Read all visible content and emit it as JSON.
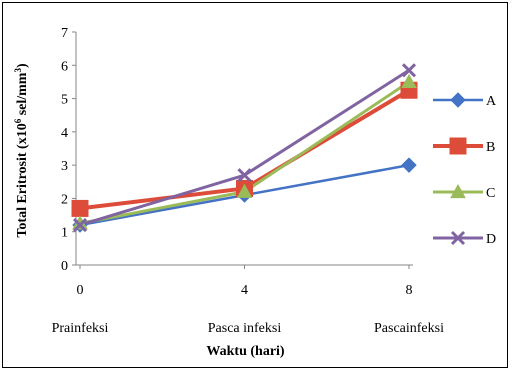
{
  "chart_data": {
    "type": "line",
    "x": [
      0,
      4,
      8
    ],
    "x_tick_labels": [
      "0",
      "4",
      "8"
    ],
    "category_labels": [
      "Prainfeksi",
      "Pasca infeksi",
      "Pascainfeksi"
    ],
    "xlabel": "Waktu (hari)",
    "ylabel": {
      "pre": "Total Eritrosit (x10",
      "sup1": "6",
      "mid": " sel/mm",
      "sup2": "3",
      "post": ")"
    },
    "ylim": [
      0,
      7
    ],
    "yticks": [
      0,
      1,
      2,
      3,
      4,
      5,
      6,
      7
    ],
    "grid": false,
    "legend_position": "right",
    "series": [
      {
        "name": "A",
        "values": [
          1.2,
          2.1,
          3.0
        ],
        "color": "#4472C4",
        "marker": "diamond"
      },
      {
        "name": "B",
        "values": [
          1.7,
          2.3,
          5.25
        ],
        "color": "#DD4B39",
        "marker": "square"
      },
      {
        "name": "C",
        "values": [
          1.25,
          2.2,
          5.5
        ],
        "color": "#9BBB59",
        "marker": "triangle"
      },
      {
        "name": "D",
        "values": [
          1.2,
          2.7,
          5.85
        ],
        "color": "#8064A2",
        "marker": "x"
      }
    ]
  }
}
